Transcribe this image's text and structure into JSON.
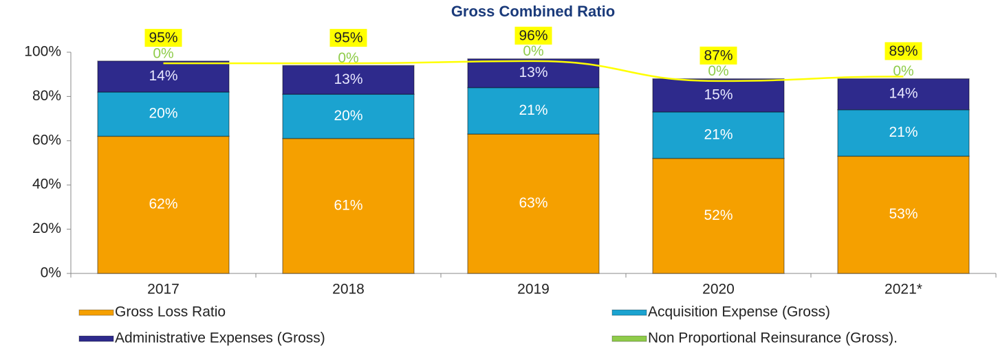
{
  "chart_data": {
    "type": "bar",
    "stacked": true,
    "title": "Gross Combined Ratio",
    "categories": [
      "2017",
      "2018",
      "2019",
      "2020",
      "2021*"
    ],
    "series": [
      {
        "name": "Gross Loss Ratio",
        "color": "#f5a000",
        "values": [
          62,
          61,
          63,
          52,
          53
        ],
        "value_labels": [
          "62%",
          "61%",
          "63%",
          "52%",
          "53%"
        ]
      },
      {
        "name": "Acquisition Expense (Gross)",
        "color": "#1ba3d0",
        "values": [
          20,
          20,
          21,
          21,
          21
        ],
        "value_labels": [
          "20%",
          "20%",
          "21%",
          "21%",
          "21%"
        ]
      },
      {
        "name": "Administrative Expenses (Gross)",
        "color": "#2e2a8c",
        "values": [
          14,
          13,
          13,
          15,
          14
        ],
        "value_labels": [
          "14%",
          "13%",
          "13%",
          "15%",
          "14%"
        ]
      },
      {
        "name": "Non Proportional Reinsurance (Gross).",
        "color": "#8fcc4a",
        "values": [
          0,
          0,
          0,
          0,
          0
        ],
        "value_labels": [
          "0%",
          "0%",
          "0%",
          "0%",
          "0%"
        ]
      }
    ],
    "totals": {
      "color": "#ffff00",
      "values": [
        95,
        95,
        96,
        87,
        89
      ],
      "value_labels": [
        "95%",
        "95%",
        "96%",
        "87%",
        "89%"
      ]
    },
    "ylim": [
      0,
      100
    ],
    "yticks": [
      {
        "value": 0,
        "label": "0%"
      },
      {
        "value": 20,
        "label": "20%"
      },
      {
        "value": 40,
        "label": "40%"
      },
      {
        "value": 60,
        "label": "60%"
      },
      {
        "value": 80,
        "label": "80%"
      },
      {
        "value": 100,
        "label": "100%"
      }
    ]
  }
}
